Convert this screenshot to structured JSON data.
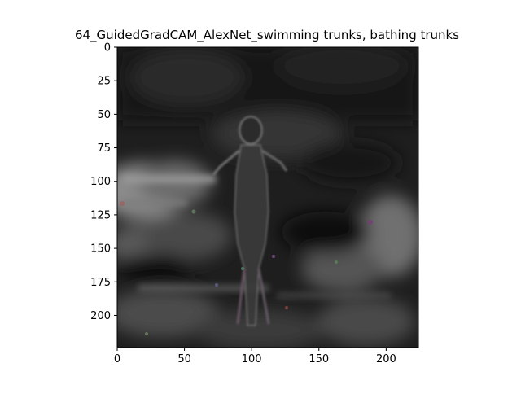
{
  "figure": {
    "title": "64_GuidedGradCAM_AlexNet_swimming trunks, bathing trunks"
  },
  "image": {
    "description_icon": "guided-gradcam-heatmap-image",
    "colormap": "grayscale with faint color noise",
    "background_color": "#ffffff",
    "frame_color": "#000000"
  },
  "axes": {
    "x": {
      "range": [
        0,
        224
      ],
      "ticks": [
        {
          "value": 0,
          "label": "0"
        },
        {
          "value": 50,
          "label": "50"
        },
        {
          "value": 100,
          "label": "100"
        },
        {
          "value": 150,
          "label": "150"
        },
        {
          "value": 200,
          "label": "200"
        }
      ]
    },
    "y": {
      "range": [
        0,
        224
      ],
      "inverted": true,
      "ticks": [
        {
          "value": 0,
          "label": "0"
        },
        {
          "value": 25,
          "label": "25"
        },
        {
          "value": 50,
          "label": "50"
        },
        {
          "value": 75,
          "label": "75"
        },
        {
          "value": 100,
          "label": "100"
        },
        {
          "value": 125,
          "label": "125"
        },
        {
          "value": 150,
          "label": "150"
        },
        {
          "value": 175,
          "label": "175"
        },
        {
          "value": 200,
          "label": "200"
        }
      ]
    }
  }
}
